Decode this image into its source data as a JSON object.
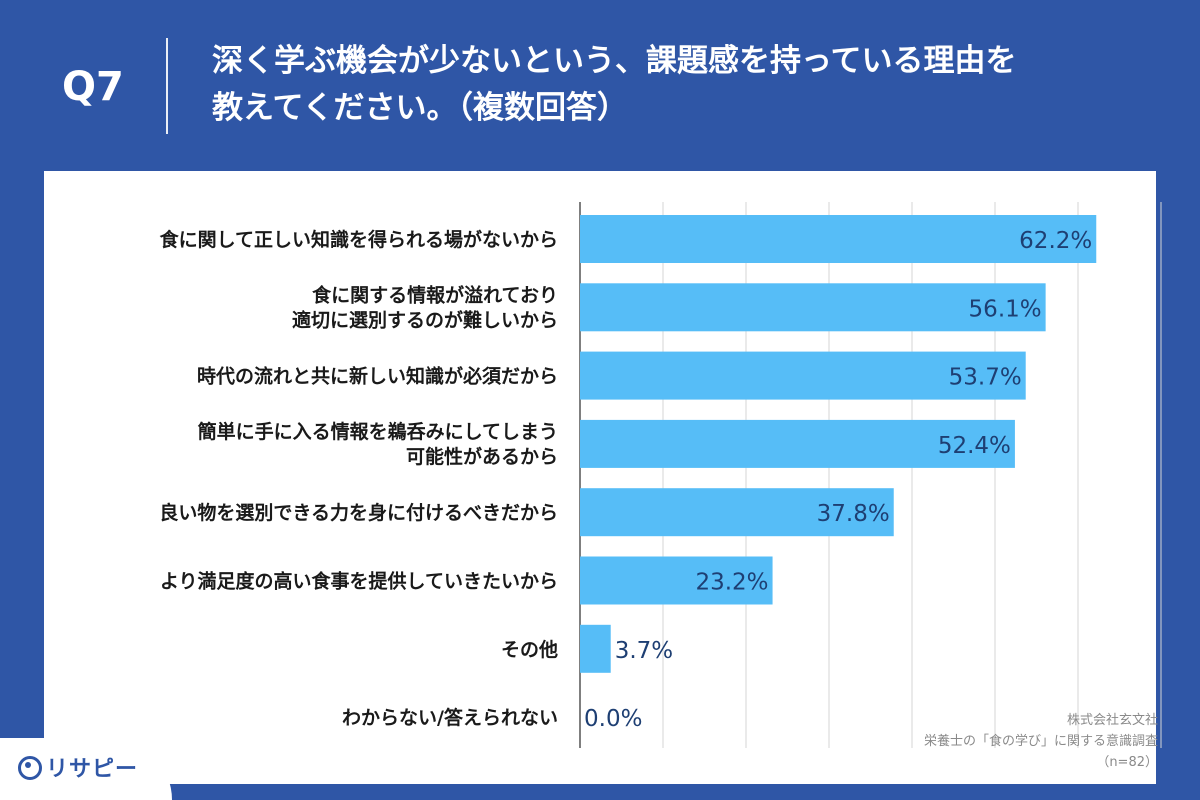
{
  "header": {
    "question_no": "Q7",
    "title_line1": "深く学ぶ機会が少ないという、課題感を持っている理由を",
    "title_line2": "教えてください。（複数回答）"
  },
  "credit": {
    "company": "株式会社玄文社",
    "survey": "栄養士の「食の学び」に関する意識調査",
    "n": "（n=82）"
  },
  "logo": {
    "text": "リサピー"
  },
  "colors": {
    "background": "#2f56a6",
    "bar": "#56bdf7",
    "value_text": "#1e3f73",
    "grid": "#d6d6d6"
  },
  "chart_data": {
    "type": "bar",
    "orientation": "horizontal",
    "categories": [
      [
        "食に関して正しい知識を得られる場がないから"
      ],
      [
        "食に関する情報が溢れており",
        "適切に選別するのが難しいから"
      ],
      [
        "時代の流れと共に新しい知識が必須だから"
      ],
      [
        "簡単に手に入る情報を鵜呑みにしてしまう",
        "可能性があるから"
      ],
      [
        "良い物を選別できる力を身に付けるべきだから"
      ],
      [
        "より満足度の高い食事を提供していきたいから"
      ],
      [
        "その他"
      ],
      [
        "わからない/答えられない"
      ]
    ],
    "values": [
      62.2,
      56.1,
      53.7,
      52.4,
      37.8,
      23.2,
      3.7,
      0.0
    ],
    "value_labels": [
      "62.2%",
      "56.1%",
      "53.7%",
      "52.4%",
      "37.8%",
      "23.2%",
      "3.7%",
      "0.0%"
    ],
    "xlim": [
      0,
      70
    ],
    "grid": true
  }
}
